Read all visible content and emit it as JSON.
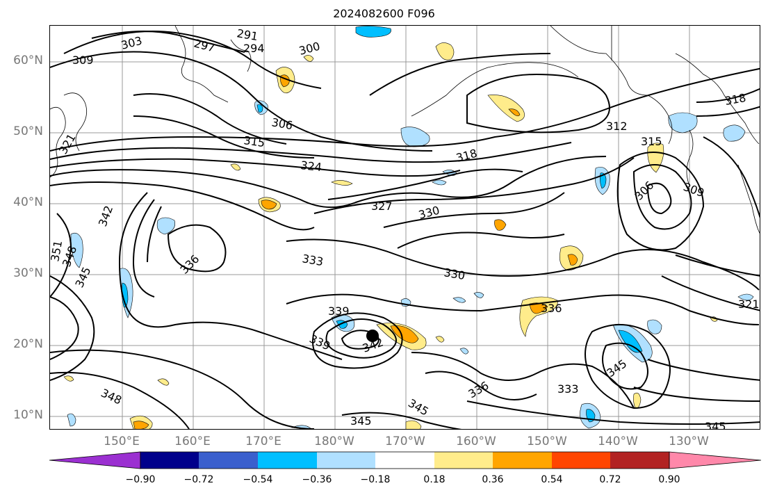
{
  "title": "2024082600 F096",
  "map": {
    "lat_labels": [
      "60°N",
      "50°N",
      "40°N",
      "30°N",
      "20°N",
      "10°N"
    ],
    "lon_labels": [
      "150°E",
      "160°E",
      "170°E",
      "180°W",
      "170°W",
      "160°W",
      "150°W",
      "140°W",
      "130°W"
    ],
    "contour_labels": [
      "291",
      "294",
      "297",
      "300",
      "303",
      "309",
      "306",
      "315",
      "318",
      "324",
      "321",
      "327",
      "330",
      "312",
      "306",
      "309",
      "315",
      "318",
      "342",
      "351",
      "348",
      "345",
      "336",
      "333",
      "330",
      "339",
      "339",
      "342",
      "336",
      "321",
      "345",
      "333",
      "348",
      "345",
      "345",
      "336",
      "345"
    ],
    "marker": "tropical cyclone position"
  },
  "colorbar": {
    "ticks": [
      "−0.90",
      "−0.72",
      "−0.54",
      "−0.36",
      "−0.18",
      "0.18",
      "0.36",
      "0.54",
      "0.72",
      "0.90"
    ],
    "colors": [
      "#9b30d1",
      "#00008b",
      "#3a5fcd",
      "#00bfff",
      "#b0e0ff",
      "#ffffff",
      "#ffec8b",
      "#ffa500",
      "#ff4500",
      "#b22222",
      "#ff88aa"
    ]
  }
}
